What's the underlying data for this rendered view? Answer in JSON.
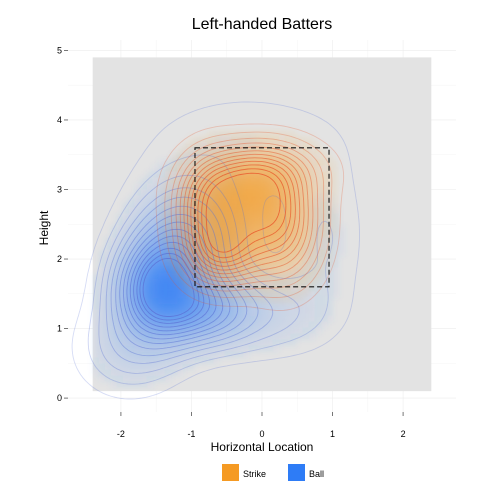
{
  "chart_data": {
    "type": "density-contour",
    "title": "Left-handed Batters",
    "xlabel": "Horizontal Location",
    "ylabel": "Height",
    "xlim": [
      -2.75,
      2.75
    ],
    "ylim": [
      -0.2,
      5.15
    ],
    "x_ticks": [
      -2,
      -1,
      0,
      1,
      2
    ],
    "y_ticks": [
      0,
      1,
      2,
      3,
      4,
      5
    ],
    "x_tick_labels": [
      "-2",
      "-1",
      "0",
      "1",
      "2"
    ],
    "y_tick_labels": [
      "0",
      "1",
      "2",
      "3",
      "4",
      "5"
    ],
    "grid": true,
    "density_region": {
      "x": [
        -2.4,
        2.4
      ],
      "y": [
        0.1,
        4.9
      ],
      "color": "#e3e3e3"
    },
    "strike_zone": {
      "x": [
        -0.95,
        0.95
      ],
      "y": [
        1.6,
        3.6
      ],
      "style": "dashed"
    },
    "legend": {
      "position": "bottom",
      "entries": [
        {
          "label": "Strike",
          "color": "#f59a23"
        },
        {
          "label": "Ball",
          "color": "#2e7cf6"
        }
      ]
    },
    "series": [
      {
        "name": "Ball",
        "color": "#3a6fe0",
        "line_color": "#5b72d6",
        "fill_color": "#2e7cf6",
        "peaks": [
          {
            "x": -1.45,
            "y": 1.55,
            "sx": 0.42,
            "sy": 0.48,
            "w": 1.0
          },
          {
            "x": -0.75,
            "y": 1.25,
            "sx": 0.45,
            "sy": 0.35,
            "w": 0.45
          },
          {
            "x": -1.1,
            "y": 2.3,
            "sx": 0.5,
            "sy": 0.55,
            "w": 0.5
          },
          {
            "x": 0.15,
            "y": 1.2,
            "sx": 0.6,
            "sy": 0.4,
            "w": 0.18
          },
          {
            "x": 0.9,
            "y": 2.3,
            "sx": 0.4,
            "sy": 0.7,
            "w": 0.12
          },
          {
            "x": -0.2,
            "y": 3.7,
            "sx": 1.1,
            "sy": 0.55,
            "w": 0.1
          },
          {
            "x": -1.9,
            "y": 0.7,
            "sx": 0.5,
            "sy": 0.45,
            "w": 0.2
          }
        ],
        "contour_levels": [
          0.06,
          0.12,
          0.18,
          0.25,
          0.32,
          0.4,
          0.48,
          0.56,
          0.64,
          0.72,
          0.8,
          0.88,
          0.95,
          1.02
        ]
      },
      {
        "name": "Strike",
        "color": "#f59a23",
        "line_color": "#e8552a",
        "fill_color": "#f59a23",
        "peaks": [
          {
            "x": -0.3,
            "y": 2.9,
            "sx": 0.5,
            "sy": 0.42,
            "w": 0.9
          },
          {
            "x": -0.55,
            "y": 2.1,
            "sx": 0.38,
            "sy": 0.35,
            "w": 0.75
          },
          {
            "x": 0.3,
            "y": 2.4,
            "sx": 0.38,
            "sy": 0.55,
            "w": 0.65
          },
          {
            "x": -0.8,
            "y": 2.7,
            "sx": 0.3,
            "sy": 0.5,
            "w": 0.4
          },
          {
            "x": 0.1,
            "y": 3.3,
            "sx": 0.55,
            "sy": 0.3,
            "w": 0.35
          }
        ],
        "contour_levels": [
          0.08,
          0.16,
          0.25,
          0.34,
          0.43,
          0.52,
          0.61,
          0.7,
          0.79,
          0.88,
          0.97,
          1.06
        ]
      }
    ]
  }
}
